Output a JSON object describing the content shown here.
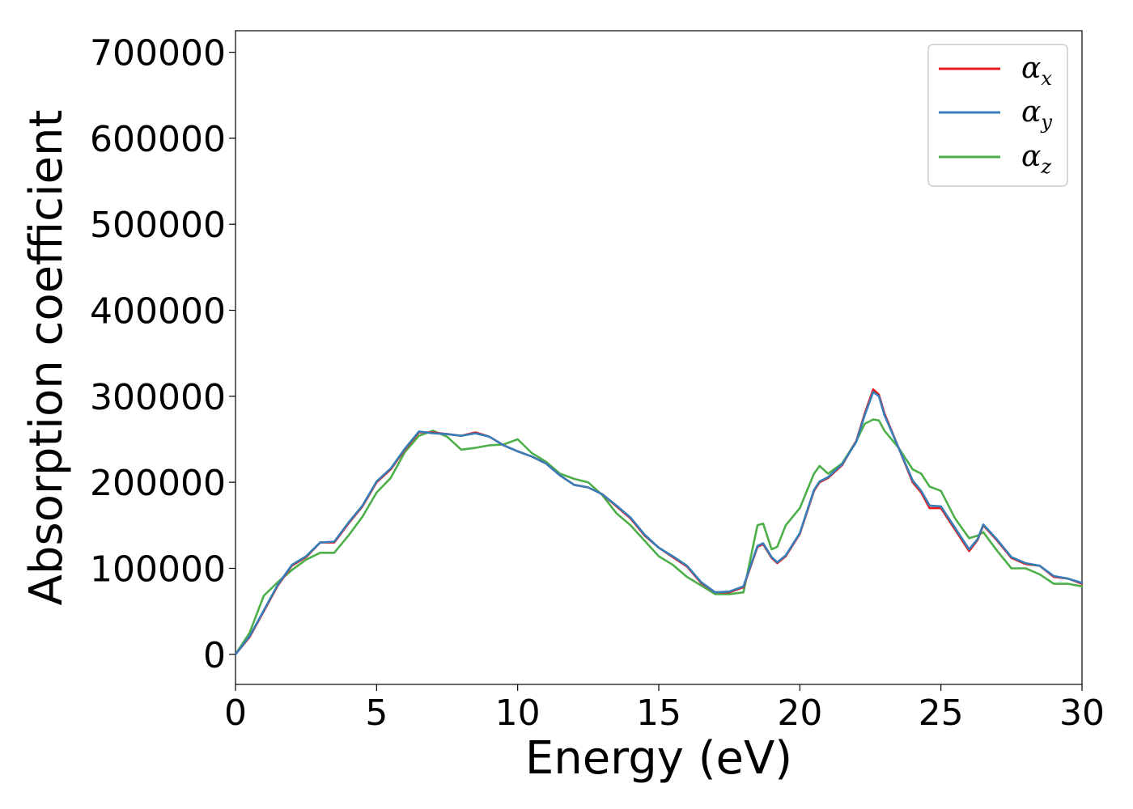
{
  "chart_data": {
    "type": "line",
    "xlabel": "Energy (eV)",
    "ylabel": "Absorption coefficient",
    "xlim": [
      0,
      30
    ],
    "ylim": [
      -35000,
      725000
    ],
    "xticks": [
      "0",
      "5",
      "10",
      "15",
      "20",
      "25",
      "30"
    ],
    "yticks": [
      "0",
      "100000",
      "200000",
      "300000",
      "400000",
      "500000",
      "600000",
      "700000"
    ],
    "grid": false,
    "legend_position": "top-right",
    "legend": [
      {
        "symbol": "α",
        "sub": "x"
      },
      {
        "symbol": "α",
        "sub": "y"
      },
      {
        "symbol": "α",
        "sub": "z"
      }
    ],
    "colors": [
      "#e41a1c",
      "#377eb8",
      "#4daf4a"
    ],
    "x": [
      0,
      0.5,
      1,
      1.5,
      2,
      2.5,
      3,
      3.5,
      4,
      4.5,
      5,
      5.5,
      6,
      6.5,
      7,
      7.5,
      8,
      8.5,
      9,
      9.5,
      10,
      10.5,
      11,
      11.5,
      12,
      12.5,
      13,
      13.5,
      14,
      14.5,
      15,
      15.5,
      16,
      16.5,
      17,
      17.5,
      18,
      18.5,
      18.7,
      19,
      19.2,
      19.5,
      20,
      20.5,
      20.7,
      21,
      21.5,
      22,
      22.3,
      22.6,
      22.8,
      23,
      23.5,
      24,
      24.3,
      24.6,
      25,
      25.5,
      26,
      26.3,
      26.5,
      27,
      27.5,
      28,
      28.5,
      29,
      29.5,
      30
    ],
    "series": [
      {
        "values": [
          0,
          20000,
          50000,
          80000,
          103000,
          113000,
          130000,
          130000,
          152000,
          172000,
          200000,
          215000,
          238000,
          258000,
          258000,
          256000,
          254000,
          258000,
          253000,
          243000,
          236000,
          230000,
          222000,
          208000,
          197000,
          194000,
          186000,
          172000,
          158000,
          138000,
          124000,
          113000,
          102000,
          83000,
          72000,
          72000,
          78000,
          125000,
          128000,
          112000,
          106000,
          114000,
          140000,
          190000,
          200000,
          205000,
          220000,
          248000,
          280000,
          308000,
          302000,
          280000,
          240000,
          200000,
          188000,
          170000,
          170000,
          145000,
          120000,
          133000,
          150000,
          132000,
          112000,
          105000,
          103000,
          90000,
          88000,
          82000
        ]
      },
      {
        "values": [
          0,
          21000,
          51000,
          81000,
          104000,
          114000,
          130000,
          131000,
          153000,
          173000,
          201000,
          216000,
          239000,
          259000,
          257000,
          256000,
          254000,
          257000,
          253000,
          243000,
          236000,
          230000,
          222000,
          208000,
          197000,
          194000,
          186000,
          173000,
          159000,
          139000,
          124000,
          114000,
          103000,
          84000,
          72000,
          73000,
          79000,
          126000,
          129000,
          113000,
          107000,
          115000,
          141000,
          191000,
          201000,
          206000,
          221000,
          247000,
          278000,
          305000,
          300000,
          278000,
          240000,
          202000,
          190000,
          173000,
          172000,
          147000,
          122000,
          134000,
          151000,
          133000,
          113000,
          106000,
          103000,
          91000,
          88000,
          83000
        ]
      },
      {
        "values": [
          0,
          25000,
          68000,
          84000,
          98000,
          110000,
          118000,
          118000,
          138000,
          160000,
          188000,
          205000,
          235000,
          254000,
          260000,
          253000,
          238000,
          240000,
          243000,
          244000,
          250000,
          234000,
          224000,
          210000,
          204000,
          200000,
          185000,
          164000,
          150000,
          132000,
          114000,
          104000,
          90000,
          80000,
          70000,
          70000,
          72000,
          150000,
          152000,
          122000,
          125000,
          150000,
          170000,
          210000,
          219000,
          210000,
          222000,
          248000,
          268000,
          273000,
          272000,
          260000,
          240000,
          215000,
          210000,
          195000,
          190000,
          158000,
          135000,
          138000,
          142000,
          120000,
          100000,
          100000,
          93000,
          82000,
          82000,
          79000
        ]
      }
    ]
  }
}
